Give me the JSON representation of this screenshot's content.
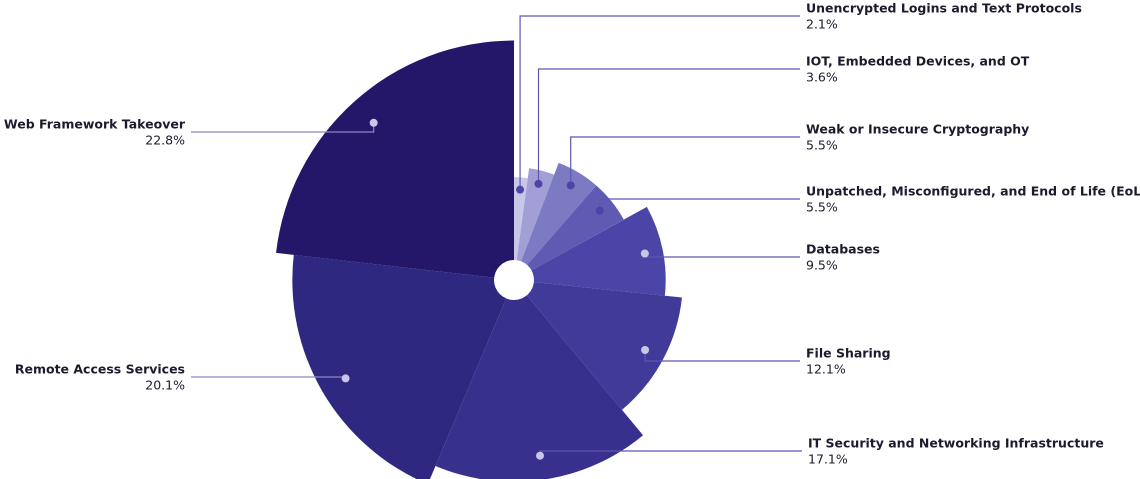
{
  "chart_data": {
    "type": "pie",
    "categories": [
      "Unencrypted Logins and Text Protocols",
      "IOT, Embedded Devices, and OT",
      "Weak or Insecure Cryptography",
      "Unpatched, Misconfigured, and End of Life (EoL)",
      "Databases",
      "File Sharing",
      "IT Security and Networking Infrastructure",
      "Remote Access Services",
      "Web Framework Takeover"
    ],
    "values": [
      2.1,
      3.6,
      5.5,
      5.5,
      9.5,
      12.1,
      17.1,
      20.1,
      22.8
    ],
    "value_labels": [
      "2.1%",
      "3.6%",
      "5.5%",
      "5.5%",
      "9.5%",
      "12.1%",
      "17.1%",
      "20.1%",
      "22.8%"
    ],
    "colors": [
      "#c9c7e8",
      "#a19fd6",
      "#7d7ac4",
      "#5f5bb3",
      "#4a45a6",
      "#403b99",
      "#37308c",
      "#2f2880",
      "#24176a"
    ]
  }
}
